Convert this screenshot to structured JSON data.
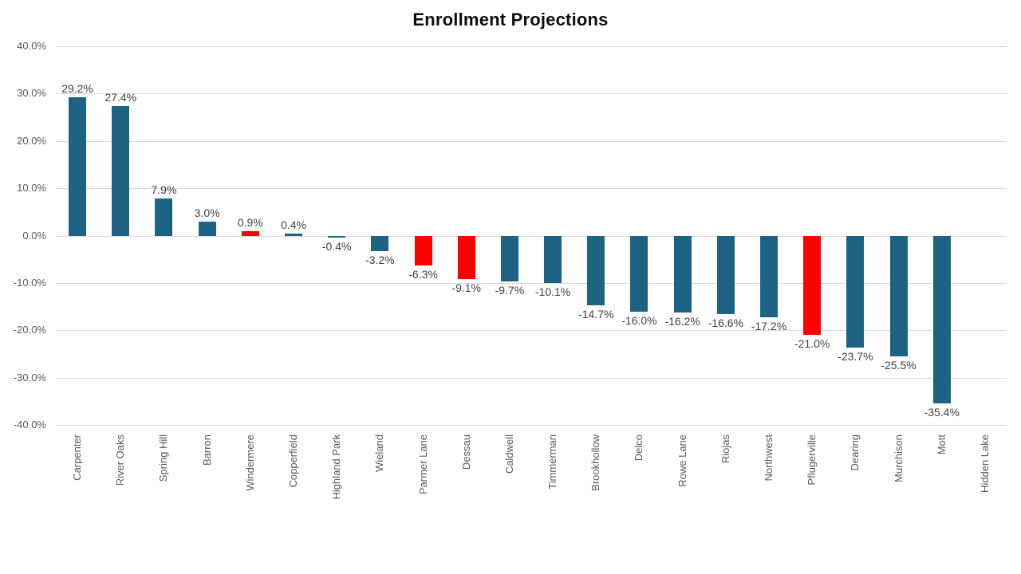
{
  "chart_data": {
    "type": "bar",
    "title": "Enrollment Projections",
    "categories": [
      "Carpenter",
      "River Oaks",
      "Spring Hill",
      "Barron",
      "Windermere",
      "Copperfield",
      "Highland Park",
      "Wieland",
      "Parmer Lane",
      "Dessau",
      "Caldwell",
      "Timmerman",
      "Brookhollow",
      "Delco",
      "Rowe Lane",
      "Riojas",
      "Northwest",
      "Pflugerville",
      "Dearing",
      "Murchison",
      "Mott",
      "Hidden Lake"
    ],
    "values": [
      29.2,
      27.4,
      7.9,
      3.0,
      0.9,
      0.4,
      -0.4,
      -3.2,
      -6.3,
      -9.1,
      -9.7,
      -10.1,
      -14.7,
      -16.0,
      -16.2,
      -16.6,
      -17.2,
      -21.0,
      -23.7,
      -25.5,
      -35.4,
      null
    ],
    "value_labels": [
      "29.2%",
      "27.4%",
      "7.9%",
      "3.0%",
      "0.9%",
      "0.4%",
      "-0.4%",
      "-3.2%",
      "-6.3%",
      "-9.1%",
      "-9.7%",
      "-10.1%",
      "-14.7%",
      "-16.0%",
      "-16.2%",
      "-16.6%",
      "-17.2%",
      "-21.0%",
      "-23.7%",
      "-25.5%",
      "-35.4%",
      ""
    ],
    "bar_colors": [
      "#1F6384",
      "#1F6384",
      "#1F6384",
      "#1F6384",
      "#FF0000",
      "#1F6384",
      "#1F6384",
      "#1F6384",
      "#FF0000",
      "#FF0000",
      "#1F6384",
      "#1F6384",
      "#1F6384",
      "#1F6384",
      "#1F6384",
      "#1F6384",
      "#1F6384",
      "#FF0000",
      "#1F6384",
      "#1F6384",
      "#1F6384",
      null
    ],
    "xlabel": "",
    "ylabel": "",
    "ylim": [
      -40,
      40
    ],
    "y_tick_interval": 10,
    "y_tick_labels": [
      "40.0%",
      "30.0%",
      "20.0%",
      "10.0%",
      "0.0%",
      "-10.0%",
      "-20.0%",
      "-30.0%",
      "-40.0%"
    ],
    "y_tick_values": [
      40,
      30,
      20,
      10,
      0,
      -10,
      -20,
      -30,
      -40
    ],
    "grid": true,
    "legend": "none",
    "colors": {
      "default_bar": "#1F6384",
      "highlight_bar": "#FF0000",
      "gridline": "#D9D9D9",
      "axis_text": "#595959",
      "data_label_text": "#404040",
      "title_text": "#0D0D0D",
      "background": "#FFFFFF"
    }
  }
}
